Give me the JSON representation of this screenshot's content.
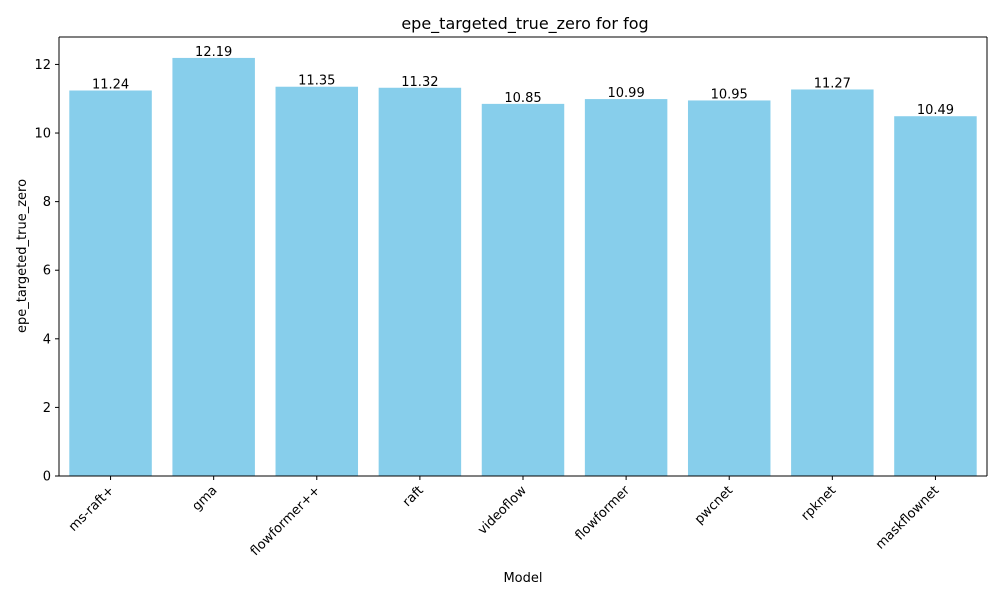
{
  "chart_data": {
    "type": "bar",
    "title": "epe_targeted_true_zero for fog",
    "xlabel": "Model",
    "ylabel": "epe_targeted_true_zero",
    "categories": [
      "ms-raft+",
      "gma",
      "flowformer++",
      "raft",
      "videoflow",
      "flowformer",
      "pwcnet",
      "rpknet",
      "maskflownet"
    ],
    "values": [
      11.24,
      12.19,
      11.35,
      11.32,
      10.85,
      10.99,
      10.95,
      11.27,
      10.49
    ],
    "value_labels": [
      "11.24",
      "12.19",
      "11.35",
      "11.32",
      "10.85",
      "10.99",
      "10.95",
      "11.27",
      "10.49"
    ],
    "ylim": [
      0,
      12.8
    ],
    "yticks": [
      0,
      2,
      4,
      6,
      8,
      10,
      12
    ],
    "x_tick_rotation_deg": 45,
    "grid": false,
    "legend": "none",
    "bar_color": "#87CEEB"
  }
}
